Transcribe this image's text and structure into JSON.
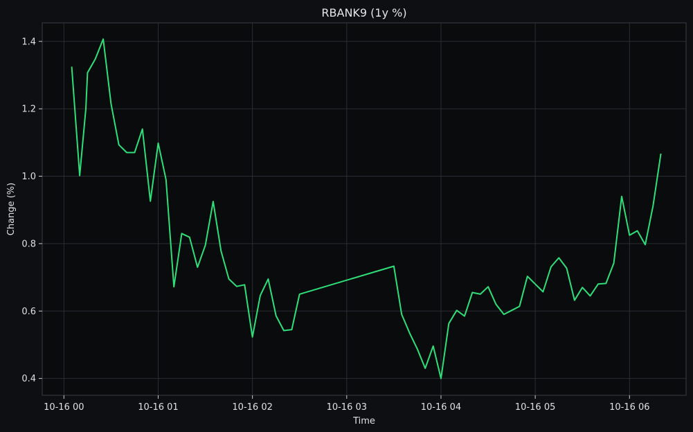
{
  "chart_data": {
    "type": "line",
    "title": "RBANK9 (1y %)",
    "xlabel": "Time",
    "ylabel": "Change (%)",
    "x_ticks": [
      "10-16 00",
      "10-16 01",
      "10-16 02",
      "10-16 03",
      "10-16 04",
      "10-16 05",
      "10-16 06"
    ],
    "y_ticks": [
      "0.4",
      "0.6",
      "0.8",
      "1.0",
      "1.2",
      "1.4"
    ],
    "xlim_hours": [
      -0.23,
      6.6
    ],
    "ylim": [
      0.35,
      1.455
    ],
    "grid": true,
    "colors": {
      "line": "#2ee07a",
      "background": "#0d0f12",
      "plot_bg": "#0a0b0d",
      "grid": "#2a2d33"
    },
    "series": [
      {
        "x_hours": [
          0.083,
          0.167,
          0.233,
          0.25,
          0.333,
          0.417,
          0.5,
          0.583,
          0.667,
          0.75,
          0.833,
          0.917,
          1.0,
          1.083,
          1.167,
          1.25,
          1.333,
          1.417,
          1.5,
          1.583,
          1.667,
          1.75,
          1.833,
          1.917,
          2.0,
          2.083,
          2.167,
          2.25,
          2.333,
          2.417,
          2.5,
          3.5,
          3.583,
          3.667,
          3.75,
          3.833,
          3.917,
          4.0,
          4.083,
          4.167,
          4.25,
          4.333,
          4.417,
          4.5,
          4.583,
          4.667,
          4.75,
          4.833,
          4.917,
          5.0,
          5.083,
          5.167,
          5.25,
          5.333,
          5.417,
          5.5,
          5.583,
          5.667,
          5.75,
          5.833,
          5.917,
          6.0,
          6.083,
          6.167,
          6.25,
          6.333
        ],
        "values": [
          1.325,
          1.002,
          1.2,
          1.307,
          1.348,
          1.407,
          1.215,
          1.093,
          1.07,
          1.07,
          1.14,
          0.926,
          1.098,
          0.99,
          0.672,
          0.83,
          0.819,
          0.73,
          0.795,
          0.925,
          0.778,
          0.695,
          0.673,
          0.678,
          0.523,
          0.646,
          0.695,
          0.586,
          0.542,
          0.545,
          0.65,
          0.733,
          0.59,
          0.535,
          0.487,
          0.43,
          0.496,
          0.4,
          0.563,
          0.602,
          0.585,
          0.655,
          0.65,
          0.672,
          0.62,
          0.59,
          0.602,
          0.614,
          0.703,
          0.68,
          0.657,
          0.731,
          0.758,
          0.727,
          0.632,
          0.67,
          0.645,
          0.68,
          0.682,
          0.742,
          0.94,
          0.825,
          0.838,
          0.797,
          0.912,
          1.067
        ]
      }
    ]
  }
}
